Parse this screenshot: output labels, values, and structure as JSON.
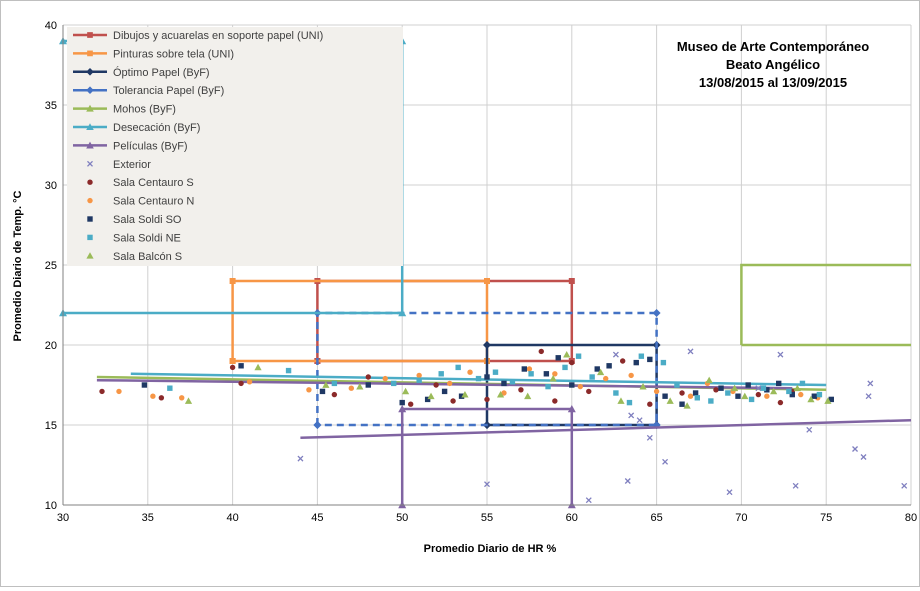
{
  "chart_data": {
    "type": "scatter",
    "title_lines": [
      "Museo de Arte Contemporáneo",
      "Beato Angélico",
      "13/08/2015 al 13/09/2015"
    ],
    "xlabel": "Promedio Diario de HR %",
    "ylabel": "Promedio Diario de Temp. °C",
    "xlim": [
      30,
      80
    ],
    "ylim": [
      10,
      40
    ],
    "xticks": [
      30,
      35,
      40,
      45,
      50,
      55,
      60,
      65,
      70,
      75,
      80
    ],
    "yticks": [
      10,
      15,
      20,
      25,
      30,
      35,
      40
    ],
    "grid": true,
    "legend_position": "top-left",
    "zones": [
      {
        "name": "Dibujos y acuarelas en soporte papel (UNI)",
        "color": "#c0504d",
        "marker": "square",
        "paths": [
          [
            [
              45,
              19
            ],
            [
              45,
              24
            ],
            [
              60,
              24
            ],
            [
              60,
              19
            ],
            [
              45,
              19
            ]
          ]
        ]
      },
      {
        "name": "Pinturas sobre tela (UNI)",
        "color": "#f79646",
        "marker": "square",
        "paths": [
          [
            [
              40,
              19
            ],
            [
              40,
              24
            ],
            [
              55,
              24
            ],
            [
              55,
              19
            ],
            [
              40,
              19
            ]
          ]
        ]
      },
      {
        "name": "Óptimo Papel (ByF)",
        "color": "#1f3864",
        "marker": "diamond",
        "paths": [
          [
            [
              55,
              15
            ],
            [
              55,
              20
            ],
            [
              65,
              20
            ],
            [
              65,
              15
            ],
            [
              55,
              15
            ]
          ]
        ]
      },
      {
        "name": "Tolerancia Papel (ByF)",
        "color": "#4472c4",
        "marker": "diamond",
        "dashed": true,
        "paths": [
          [
            [
              45,
              15
            ],
            [
              45,
              22
            ],
            [
              65,
              22
            ],
            [
              65,
              15
            ],
            [
              45,
              15
            ]
          ]
        ]
      },
      {
        "name": "Mohos (ByF)",
        "color": "#9bbb59",
        "marker": "triangle",
        "paths": [
          [
            [
              70,
              20
            ],
            [
              70,
              25
            ],
            [
              80,
              25
            ]
          ],
          [
            [
              70,
              20
            ],
            [
              80,
              20
            ]
          ],
          [
            [
              32,
              18
            ],
            [
              75,
              17.2
            ]
          ]
        ]
      },
      {
        "name": "Desecación (ByF)",
        "color": "#4bacc6",
        "marker": "triangle",
        "paths": [
          [
            [
              30,
              22
            ],
            [
              50,
              22
            ],
            [
              50,
              39
            ],
            [
              30,
              39
            ]
          ],
          [
            [
              34,
              18.2
            ],
            [
              75,
              17.5
            ]
          ]
        ]
      },
      {
        "name": "Películas (ByF)",
        "color": "#8064a2",
        "marker": "triangle",
        "paths": [
          [
            [
              50,
              10
            ],
            [
              50,
              16
            ],
            [
              60,
              16
            ],
            [
              60,
              10
            ]
          ],
          [
            [
              44,
              14.2
            ],
            [
              80,
              15.3
            ]
          ],
          [
            [
              32,
              17.8
            ],
            [
              73,
              17.3
            ]
          ]
        ]
      }
    ],
    "series": [
      {
        "name": "Exterior",
        "color": "#7f7fbf",
        "marker": "x",
        "points": [
          [
            44,
            12.9
          ],
          [
            55,
            11.3
          ],
          [
            61,
            10.3
          ],
          [
            63.3,
            11.5
          ],
          [
            64,
            15.3
          ],
          [
            64.6,
            14.2
          ],
          [
            65.5,
            12.7
          ],
          [
            69.3,
            10.8
          ],
          [
            73.2,
            11.2
          ],
          [
            74,
            14.7
          ],
          [
            76.7,
            13.5
          ],
          [
            77.2,
            13.0
          ],
          [
            77.6,
            17.6
          ],
          [
            77.5,
            16.8
          ],
          [
            79.6,
            11.2
          ],
          [
            62.6,
            19.4
          ],
          [
            67,
            19.6
          ],
          [
            72.3,
            19.4
          ],
          [
            63.5,
            15.6
          ],
          [
            71,
            17.3
          ]
        ]
      },
      {
        "name": "Sala Centauro S",
        "color": "#8b2a2a",
        "marker": "circle",
        "points": [
          [
            32.3,
            17.1
          ],
          [
            35.8,
            16.7
          ],
          [
            40,
            18.6
          ],
          [
            40.5,
            17.6
          ],
          [
            46,
            16.9
          ],
          [
            48,
            18.0
          ],
          [
            50.5,
            16.3
          ],
          [
            52,
            17.5
          ],
          [
            53,
            16.5
          ],
          [
            55,
            16.6
          ],
          [
            57,
            17.2
          ],
          [
            58.2,
            19.6
          ],
          [
            59,
            16.5
          ],
          [
            60,
            18.9
          ],
          [
            61,
            17.1
          ],
          [
            63,
            19.0
          ],
          [
            64.6,
            16.3
          ],
          [
            66.5,
            17.0
          ],
          [
            68.5,
            17.2
          ],
          [
            71,
            16.9
          ],
          [
            72.3,
            16.4
          ],
          [
            73,
            17.1
          ]
        ]
      },
      {
        "name": "Sala Centauro N",
        "color": "#f79646",
        "marker": "circle",
        "points": [
          [
            33.3,
            17.1
          ],
          [
            35.3,
            16.8
          ],
          [
            37,
            16.7
          ],
          [
            41,
            17.7
          ],
          [
            44.5,
            17.2
          ],
          [
            47,
            17.3
          ],
          [
            49,
            17.9
          ],
          [
            51,
            18.1
          ],
          [
            52.8,
            17.6
          ],
          [
            54,
            18.3
          ],
          [
            56,
            17.0
          ],
          [
            57.5,
            18.5
          ],
          [
            59,
            18.2
          ],
          [
            60.5,
            17.4
          ],
          [
            62,
            17.9
          ],
          [
            63.5,
            18.1
          ],
          [
            65,
            17.1
          ],
          [
            67,
            16.8
          ],
          [
            68,
            17.6
          ],
          [
            69.5,
            17.1
          ],
          [
            71.5,
            16.8
          ],
          [
            73.5,
            16.9
          ],
          [
            74.5,
            16.7
          ]
        ]
      },
      {
        "name": "Sala Soldi SO",
        "color": "#1f3864",
        "marker": "square",
        "points": [
          [
            34.8,
            17.5
          ],
          [
            40.5,
            18.7
          ],
          [
            45.3,
            17.1
          ],
          [
            48,
            17.5
          ],
          [
            50,
            16.4
          ],
          [
            51.5,
            16.6
          ],
          [
            52.5,
            17.1
          ],
          [
            53.5,
            16.8
          ],
          [
            55,
            18.0
          ],
          [
            56,
            17.6
          ],
          [
            57.2,
            18.5
          ],
          [
            58.5,
            18.2
          ],
          [
            59.2,
            19.2
          ],
          [
            60,
            17.5
          ],
          [
            61.5,
            18.5
          ],
          [
            62.2,
            18.7
          ],
          [
            63.8,
            18.9
          ],
          [
            64.6,
            19.1
          ],
          [
            65.5,
            16.8
          ],
          [
            66.5,
            16.3
          ],
          [
            67.3,
            17.0
          ],
          [
            68.8,
            17.3
          ],
          [
            69.8,
            16.8
          ],
          [
            70.4,
            17.5
          ],
          [
            71.5,
            17.2
          ],
          [
            72.2,
            17.6
          ],
          [
            73,
            16.9
          ],
          [
            74.3,
            16.8
          ],
          [
            75.3,
            16.6
          ]
        ]
      },
      {
        "name": "Sala Soldi NE",
        "color": "#4bacc6",
        "marker": "square",
        "points": [
          [
            36.3,
            17.3
          ],
          [
            43.3,
            18.4
          ],
          [
            46,
            17.6
          ],
          [
            49.5,
            17.6
          ],
          [
            51,
            17.8
          ],
          [
            52.3,
            18.2
          ],
          [
            53.3,
            18.6
          ],
          [
            54.5,
            17.9
          ],
          [
            55.5,
            18.3
          ],
          [
            56.5,
            17.7
          ],
          [
            57.6,
            18.2
          ],
          [
            58.6,
            17.4
          ],
          [
            59.6,
            18.6
          ],
          [
            60.4,
            19.3
          ],
          [
            61.2,
            18.0
          ],
          [
            62.6,
            17.0
          ],
          [
            63.4,
            16.4
          ],
          [
            64.1,
            19.3
          ],
          [
            65.4,
            18.9
          ],
          [
            66.2,
            17.5
          ],
          [
            67.4,
            16.7
          ],
          [
            68.2,
            16.5
          ],
          [
            69.2,
            17.0
          ],
          [
            70.6,
            16.6
          ],
          [
            71.3,
            17.3
          ],
          [
            72.8,
            17.1
          ],
          [
            73.6,
            17.6
          ],
          [
            74.6,
            16.9
          ]
        ]
      },
      {
        "name": "Sala Balcón S",
        "color": "#9bbb59",
        "marker": "triangle",
        "points": [
          [
            37.4,
            16.5
          ],
          [
            41.5,
            18.6
          ],
          [
            45.5,
            17.5
          ],
          [
            47.5,
            17.4
          ],
          [
            50.2,
            17.1
          ],
          [
            51.7,
            16.8
          ],
          [
            53.7,
            16.9
          ],
          [
            55.8,
            16.9
          ],
          [
            57.4,
            16.8
          ],
          [
            58.9,
            17.9
          ],
          [
            59.7,
            19.4
          ],
          [
            61.7,
            18.3
          ],
          [
            62.9,
            16.5
          ],
          [
            64.2,
            17.4
          ],
          [
            65.8,
            16.5
          ],
          [
            66.8,
            16.2
          ],
          [
            68.1,
            17.8
          ],
          [
            69.6,
            17.3
          ],
          [
            70.2,
            16.8
          ],
          [
            71.9,
            17.1
          ],
          [
            73.3,
            17.3
          ],
          [
            74.1,
            16.6
          ],
          [
            75.1,
            16.5
          ]
        ]
      }
    ]
  }
}
